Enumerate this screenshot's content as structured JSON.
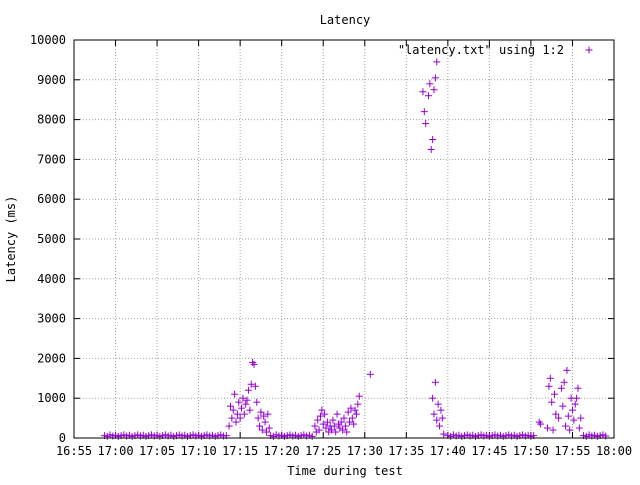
{
  "chart_data": {
    "type": "scatter",
    "title": "Latency",
    "xlabel": "Time during test",
    "ylabel": "Latency (ms)",
    "xlim": [
      "16:55",
      "18:00"
    ],
    "ylim": [
      0,
      10000
    ],
    "xticks": [
      "16:55",
      "17:00",
      "17:05",
      "17:10",
      "17:15",
      "17:20",
      "17:25",
      "17:30",
      "17:35",
      "17:40",
      "17:45",
      "17:50",
      "17:55",
      "18:00"
    ],
    "yticks": [
      0,
      1000,
      2000,
      3000,
      4000,
      5000,
      6000,
      7000,
      8000,
      9000,
      10000
    ],
    "grid": true,
    "legend_position": "top-right",
    "marker": "+",
    "series": [
      {
        "name": "\"latency.txt\" using 1:2",
        "color": "#9400d3",
        "points": [
          {
            "x": "16:58:40",
            "y": 60
          },
          {
            "x": "16:59:00",
            "y": 40
          },
          {
            "x": "16:59:20",
            "y": 80
          },
          {
            "x": "16:59:40",
            "y": 50
          },
          {
            "x": "17:00:00",
            "y": 70
          },
          {
            "x": "17:00:20",
            "y": 40
          },
          {
            "x": "17:00:40",
            "y": 60
          },
          {
            "x": "17:01:00",
            "y": 80
          },
          {
            "x": "17:01:20",
            "y": 50
          },
          {
            "x": "17:01:40",
            "y": 70
          },
          {
            "x": "17:02:00",
            "y": 40
          },
          {
            "x": "17:02:20",
            "y": 60
          },
          {
            "x": "17:02:40",
            "y": 80
          },
          {
            "x": "17:03:00",
            "y": 50
          },
          {
            "x": "17:03:20",
            "y": 70
          },
          {
            "x": "17:03:40",
            "y": 40
          },
          {
            "x": "17:04:00",
            "y": 60
          },
          {
            "x": "17:04:20",
            "y": 80
          },
          {
            "x": "17:04:40",
            "y": 50
          },
          {
            "x": "17:05:00",
            "y": 70
          },
          {
            "x": "17:05:20",
            "y": 40
          },
          {
            "x": "17:05:40",
            "y": 60
          },
          {
            "x": "17:06:00",
            "y": 80
          },
          {
            "x": "17:06:20",
            "y": 50
          },
          {
            "x": "17:06:40",
            "y": 70
          },
          {
            "x": "17:07:00",
            "y": 40
          },
          {
            "x": "17:07:20",
            "y": 60
          },
          {
            "x": "17:07:40",
            "y": 80
          },
          {
            "x": "17:08:00",
            "y": 50
          },
          {
            "x": "17:08:20",
            "y": 70
          },
          {
            "x": "17:08:40",
            "y": 40
          },
          {
            "x": "17:09:00",
            "y": 60
          },
          {
            "x": "17:09:20",
            "y": 80
          },
          {
            "x": "17:09:40",
            "y": 50
          },
          {
            "x": "17:10:00",
            "y": 70
          },
          {
            "x": "17:10:20",
            "y": 40
          },
          {
            "x": "17:10:40",
            "y": 60
          },
          {
            "x": "17:11:00",
            "y": 80
          },
          {
            "x": "17:11:20",
            "y": 50
          },
          {
            "x": "17:11:40",
            "y": 70
          },
          {
            "x": "17:12:00",
            "y": 40
          },
          {
            "x": "17:12:20",
            "y": 60
          },
          {
            "x": "17:12:40",
            "y": 80
          },
          {
            "x": "17:13:00",
            "y": 50
          },
          {
            "x": "17:13:20",
            "y": 60
          },
          {
            "x": "17:13:40",
            "y": 300
          },
          {
            "x": "17:13:50",
            "y": 800
          },
          {
            "x": "17:14:00",
            "y": 500
          },
          {
            "x": "17:14:10",
            "y": 700
          },
          {
            "x": "17:14:20",
            "y": 1100
          },
          {
            "x": "17:14:30",
            "y": 400
          },
          {
            "x": "17:14:40",
            "y": 600
          },
          {
            "x": "17:14:50",
            "y": 900
          },
          {
            "x": "17:15:00",
            "y": 500
          },
          {
            "x": "17:15:10",
            "y": 750
          },
          {
            "x": "17:15:20",
            "y": 1000
          },
          {
            "x": "17:15:30",
            "y": 600
          },
          {
            "x": "17:15:40",
            "y": 850
          },
          {
            "x": "17:15:50",
            "y": 950
          },
          {
            "x": "17:16:00",
            "y": 1200
          },
          {
            "x": "17:16:10",
            "y": 700
          },
          {
            "x": "17:16:20",
            "y": 1350
          },
          {
            "x": "17:16:30",
            "y": 1900
          },
          {
            "x": "17:16:40",
            "y": 1850
          },
          {
            "x": "17:16:50",
            "y": 1300
          },
          {
            "x": "17:17:00",
            "y": 900
          },
          {
            "x": "17:17:10",
            "y": 500
          },
          {
            "x": "17:17:20",
            "y": 300
          },
          {
            "x": "17:17:30",
            "y": 650
          },
          {
            "x": "17:17:40",
            "y": 200
          },
          {
            "x": "17:17:50",
            "y": 550
          },
          {
            "x": "17:18:00",
            "y": 400
          },
          {
            "x": "17:18:10",
            "y": 150
          },
          {
            "x": "17:18:20",
            "y": 600
          },
          {
            "x": "17:18:30",
            "y": 250
          },
          {
            "x": "17:18:40",
            "y": 60
          },
          {
            "x": "17:19:00",
            "y": 40
          },
          {
            "x": "17:19:20",
            "y": 80
          },
          {
            "x": "17:19:40",
            "y": 50
          },
          {
            "x": "17:20:00",
            "y": 70
          },
          {
            "x": "17:20:20",
            "y": 40
          },
          {
            "x": "17:20:40",
            "y": 60
          },
          {
            "x": "17:21:00",
            "y": 80
          },
          {
            "x": "17:21:20",
            "y": 50
          },
          {
            "x": "17:21:40",
            "y": 70
          },
          {
            "x": "17:22:00",
            "y": 40
          },
          {
            "x": "17:22:20",
            "y": 60
          },
          {
            "x": "17:22:40",
            "y": 80
          },
          {
            "x": "17:23:00",
            "y": 50
          },
          {
            "x": "17:23:20",
            "y": 70
          },
          {
            "x": "17:23:40",
            "y": 40
          },
          {
            "x": "17:24:00",
            "y": 300
          },
          {
            "x": "17:24:10",
            "y": 150
          },
          {
            "x": "17:24:20",
            "y": 450
          },
          {
            "x": "17:24:30",
            "y": 200
          },
          {
            "x": "17:24:40",
            "y": 550
          },
          {
            "x": "17:24:50",
            "y": 700
          },
          {
            "x": "17:25:00",
            "y": 350
          },
          {
            "x": "17:25:10",
            "y": 600
          },
          {
            "x": "17:25:20",
            "y": 250
          },
          {
            "x": "17:25:30",
            "y": 400
          },
          {
            "x": "17:25:40",
            "y": 150
          },
          {
            "x": "17:25:50",
            "y": 300
          },
          {
            "x": "17:26:00",
            "y": 200
          },
          {
            "x": "17:26:10",
            "y": 450
          },
          {
            "x": "17:26:20",
            "y": 300
          },
          {
            "x": "17:26:30",
            "y": 150
          },
          {
            "x": "17:26:40",
            "y": 600
          },
          {
            "x": "17:26:50",
            "y": 350
          },
          {
            "x": "17:27:00",
            "y": 250
          },
          {
            "x": "17:27:10",
            "y": 400
          },
          {
            "x": "17:27:20",
            "y": 200
          },
          {
            "x": "17:27:30",
            "y": 500
          },
          {
            "x": "17:27:40",
            "y": 300
          },
          {
            "x": "17:27:50",
            "y": 150
          },
          {
            "x": "17:28:00",
            "y": 650
          },
          {
            "x": "17:28:10",
            "y": 400
          },
          {
            "x": "17:28:20",
            "y": 750
          },
          {
            "x": "17:28:30",
            "y": 500
          },
          {
            "x": "17:28:40",
            "y": 350
          },
          {
            "x": "17:28:50",
            "y": 700
          },
          {
            "x": "17:29:00",
            "y": 600
          },
          {
            "x": "17:29:10",
            "y": 850
          },
          {
            "x": "17:29:20",
            "y": 1050
          },
          {
            "x": "17:30:40",
            "y": 1600
          },
          {
            "x": "17:37:00",
            "y": 8700
          },
          {
            "x": "17:37:10",
            "y": 8200
          },
          {
            "x": "17:37:20",
            "y": 7900
          },
          {
            "x": "17:37:40",
            "y": 8600
          },
          {
            "x": "17:37:50",
            "y": 8900
          },
          {
            "x": "17:38:00",
            "y": 7250
          },
          {
            "x": "17:38:10",
            "y": 7500
          },
          {
            "x": "17:38:20",
            "y": 8750
          },
          {
            "x": "17:38:30",
            "y": 9050
          },
          {
            "x": "17:38:40",
            "y": 9450
          },
          {
            "x": "17:38:10",
            "y": 1000
          },
          {
            "x": "17:38:20",
            "y": 600
          },
          {
            "x": "17:38:30",
            "y": 1400
          },
          {
            "x": "17:38:40",
            "y": 450
          },
          {
            "x": "17:38:50",
            "y": 850
          },
          {
            "x": "17:39:00",
            "y": 300
          },
          {
            "x": "17:39:10",
            "y": 700
          },
          {
            "x": "17:39:20",
            "y": 500
          },
          {
            "x": "17:39:30",
            "y": 100
          },
          {
            "x": "17:40:00",
            "y": 60
          },
          {
            "x": "17:40:20",
            "y": 40
          },
          {
            "x": "17:40:40",
            "y": 80
          },
          {
            "x": "17:41:00",
            "y": 50
          },
          {
            "x": "17:41:20",
            "y": 70
          },
          {
            "x": "17:41:40",
            "y": 40
          },
          {
            "x": "17:42:00",
            "y": 60
          },
          {
            "x": "17:42:20",
            "y": 80
          },
          {
            "x": "17:42:40",
            "y": 50
          },
          {
            "x": "17:43:00",
            "y": 70
          },
          {
            "x": "17:43:20",
            "y": 40
          },
          {
            "x": "17:43:40",
            "y": 60
          },
          {
            "x": "17:44:00",
            "y": 80
          },
          {
            "x": "17:44:20",
            "y": 50
          },
          {
            "x": "17:44:40",
            "y": 70
          },
          {
            "x": "17:45:00",
            "y": 40
          },
          {
            "x": "17:45:20",
            "y": 60
          },
          {
            "x": "17:45:40",
            "y": 80
          },
          {
            "x": "17:46:00",
            "y": 50
          },
          {
            "x": "17:46:20",
            "y": 70
          },
          {
            "x": "17:46:40",
            "y": 40
          },
          {
            "x": "17:47:00",
            "y": 60
          },
          {
            "x": "17:47:20",
            "y": 80
          },
          {
            "x": "17:47:40",
            "y": 50
          },
          {
            "x": "17:48:00",
            "y": 70
          },
          {
            "x": "17:48:20",
            "y": 40
          },
          {
            "x": "17:48:40",
            "y": 60
          },
          {
            "x": "17:49:00",
            "y": 80
          },
          {
            "x": "17:49:20",
            "y": 50
          },
          {
            "x": "17:49:40",
            "y": 70
          },
          {
            "x": "17:50:00",
            "y": 40
          },
          {
            "x": "17:50:20",
            "y": 60
          },
          {
            "x": "17:51:00",
            "y": 400
          },
          {
            "x": "17:51:10",
            "y": 350
          },
          {
            "x": "17:52:00",
            "y": 250
          },
          {
            "x": "17:52:10",
            "y": 1300
          },
          {
            "x": "17:52:20",
            "y": 1500
          },
          {
            "x": "17:52:30",
            "y": 900
          },
          {
            "x": "17:52:40",
            "y": 200
          },
          {
            "x": "17:52:50",
            "y": 1100
          },
          {
            "x": "17:53:00",
            "y": 600
          },
          {
            "x": "17:53:20",
            "y": 500
          },
          {
            "x": "17:53:40",
            "y": 1250
          },
          {
            "x": "17:53:50",
            "y": 800
          },
          {
            "x": "17:54:00",
            "y": 1400
          },
          {
            "x": "17:54:10",
            "y": 300
          },
          {
            "x": "17:54:20",
            "y": 1700
          },
          {
            "x": "17:54:30",
            "y": 550
          },
          {
            "x": "17:54:40",
            "y": 200
          },
          {
            "x": "17:54:50",
            "y": 1000
          },
          {
            "x": "17:55:00",
            "y": 700
          },
          {
            "x": "17:55:10",
            "y": 450
          },
          {
            "x": "17:55:20",
            "y": 850
          },
          {
            "x": "17:55:30",
            "y": 1000
          },
          {
            "x": "17:55:40",
            "y": 1250
          },
          {
            "x": "17:55:50",
            "y": 250
          },
          {
            "x": "17:56:00",
            "y": 500
          },
          {
            "x": "17:56:20",
            "y": 60
          },
          {
            "x": "17:56:40",
            "y": 40
          },
          {
            "x": "17:57:00",
            "y": 80
          },
          {
            "x": "17:57:20",
            "y": 50
          },
          {
            "x": "17:57:40",
            "y": 70
          },
          {
            "x": "17:58:00",
            "y": 40
          },
          {
            "x": "17:58:20",
            "y": 60
          },
          {
            "x": "17:58:40",
            "y": 80
          },
          {
            "x": "17:59:00",
            "y": 50
          }
        ]
      }
    ]
  }
}
